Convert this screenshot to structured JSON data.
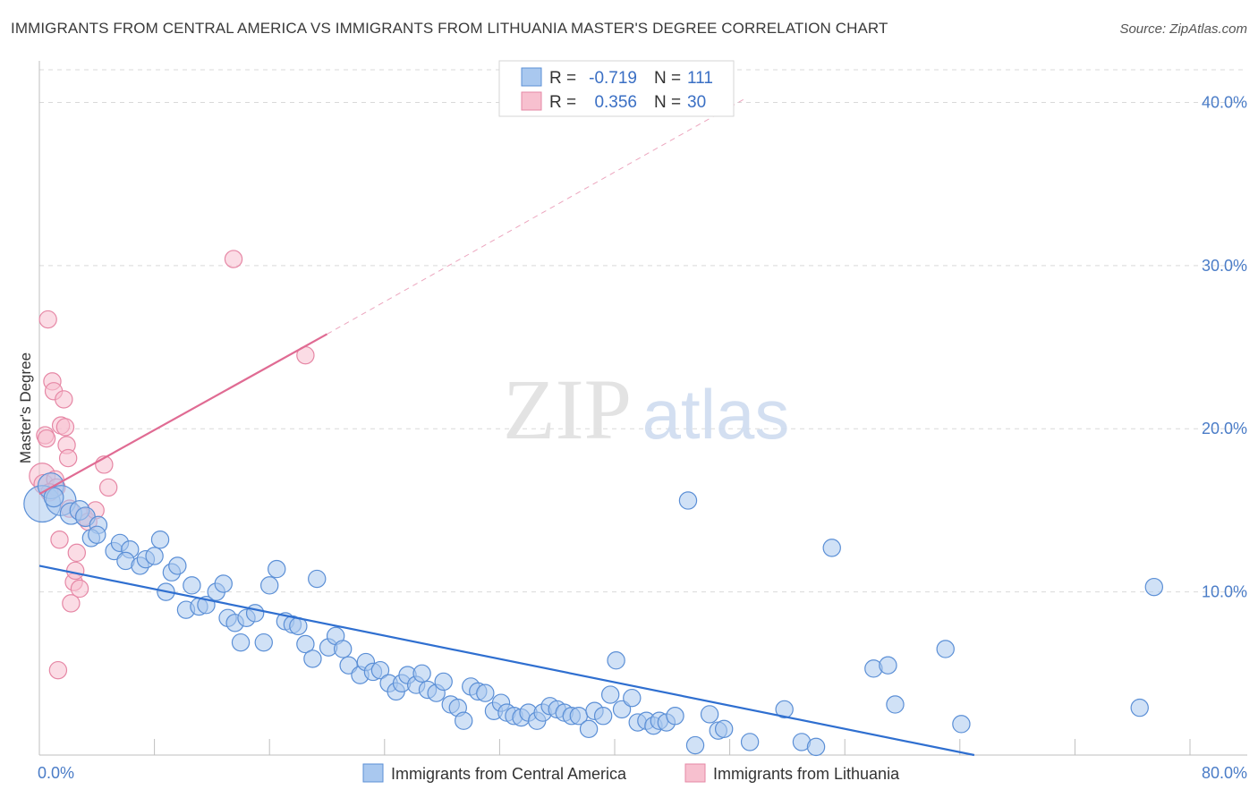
{
  "title": "IMMIGRANTS FROM CENTRAL AMERICA VS IMMIGRANTS FROM LITHUANIA MASTER'S DEGREE CORRELATION CHART",
  "source": "Source: ZipAtlas.com",
  "watermark": {
    "zip": "ZIP",
    "atlas": "atlas"
  },
  "colors": {
    "blue_fill": "#a9c8ef",
    "blue_stroke": "#5b8fd6",
    "blue_line": "#2f6fd0",
    "pink_fill": "#f7c0cf",
    "pink_stroke": "#e687a5",
    "pink_line": "#e06b93",
    "tick_text": "#4a7cc7",
    "grid": "#d9d9d9"
  },
  "legend": {
    "rows": [
      {
        "r_label": "R =",
        "r_value": "-0.719",
        "n_label": "N =",
        "n_value": "111"
      },
      {
        "r_label": "R =",
        "r_value": "0.356",
        "n_label": "N =",
        "n_value": "30"
      }
    ]
  },
  "chart_data": {
    "type": "scatter",
    "title": "IMMIGRANTS FROM CENTRAL AMERICA VS IMMIGRANTS FROM LITHUANIA MASTER'S DEGREE CORRELATION CHART",
    "xlabel": "",
    "ylabel": "Master's Degree",
    "xlim": [
      0,
      80
    ],
    "ylim": [
      0,
      42
    ],
    "x_tick_labels": [
      "0.0%",
      "80.0%"
    ],
    "y_ticks": [
      10,
      20,
      30,
      40
    ],
    "y_tick_labels": [
      "10.0%",
      "20.0%",
      "30.0%",
      "40.0%"
    ],
    "grid": true,
    "legend_position": "top-center",
    "series": [
      {
        "name": "Immigrants from Central America",
        "color": "#a9c8ef",
        "points": [
          [
            0.2,
            15.4,
            1.7
          ],
          [
            0.8,
            16.5,
            1.2
          ],
          [
            1.5,
            15.6,
            1.4
          ],
          [
            2.2,
            14.8,
            1.0
          ],
          [
            2.8,
            15.0,
            0.9
          ],
          [
            3.2,
            14.6,
            0.9
          ],
          [
            4.1,
            14.1,
            0.8
          ],
          [
            3.6,
            13.3,
            0.8
          ],
          [
            4.0,
            13.5,
            0.8
          ],
          [
            5.2,
            12.5,
            0.8
          ],
          [
            5.6,
            13.0,
            0.8
          ],
          [
            6.3,
            12.6,
            0.8
          ],
          [
            6.0,
            11.9,
            0.8
          ],
          [
            7.0,
            11.6,
            0.8
          ],
          [
            7.4,
            12.0,
            0.8
          ],
          [
            8.0,
            12.2,
            0.8
          ],
          [
            8.4,
            13.2,
            0.8
          ],
          [
            9.2,
            11.2,
            0.8
          ],
          [
            9.6,
            11.6,
            0.8
          ],
          [
            8.8,
            10.0,
            0.8
          ],
          [
            10.6,
            10.4,
            0.8
          ],
          [
            10.2,
            8.9,
            0.8
          ],
          [
            11.1,
            9.1,
            0.8
          ],
          [
            11.6,
            9.2,
            0.8
          ],
          [
            12.3,
            10.0,
            0.8
          ],
          [
            12.8,
            10.5,
            0.8
          ],
          [
            13.1,
            8.4,
            0.8
          ],
          [
            13.6,
            8.1,
            0.8
          ],
          [
            14.4,
            8.4,
            0.8
          ],
          [
            15.0,
            8.7,
            0.8
          ],
          [
            14.0,
            6.9,
            0.8
          ],
          [
            15.6,
            6.9,
            0.8
          ],
          [
            16.0,
            10.4,
            0.8
          ],
          [
            16.5,
            11.4,
            0.8
          ],
          [
            17.1,
            8.2,
            0.8
          ],
          [
            17.6,
            8.0,
            0.8
          ],
          [
            18.0,
            7.9,
            0.8
          ],
          [
            18.5,
            6.8,
            0.8
          ],
          [
            19.0,
            5.9,
            0.8
          ],
          [
            19.3,
            10.8,
            0.8
          ],
          [
            20.1,
            6.6,
            0.8
          ],
          [
            20.6,
            7.3,
            0.8
          ],
          [
            21.1,
            6.5,
            0.8
          ],
          [
            21.5,
            5.5,
            0.8
          ],
          [
            22.3,
            4.9,
            0.8
          ],
          [
            22.7,
            5.7,
            0.8
          ],
          [
            23.2,
            5.1,
            0.8
          ],
          [
            23.7,
            5.2,
            0.8
          ],
          [
            24.3,
            4.4,
            0.8
          ],
          [
            24.8,
            3.9,
            0.8
          ],
          [
            25.2,
            4.4,
            0.8
          ],
          [
            25.6,
            4.9,
            0.8
          ],
          [
            26.2,
            4.3,
            0.8
          ],
          [
            26.6,
            5.0,
            0.8
          ],
          [
            27.0,
            4.0,
            0.8
          ],
          [
            27.6,
            3.8,
            0.8
          ],
          [
            28.1,
            4.5,
            0.8
          ],
          [
            28.6,
            3.1,
            0.8
          ],
          [
            29.1,
            2.9,
            0.8
          ],
          [
            29.5,
            2.1,
            0.8
          ],
          [
            30.0,
            4.2,
            0.8
          ],
          [
            30.5,
            3.9,
            0.8
          ],
          [
            31.0,
            3.8,
            0.8
          ],
          [
            31.6,
            2.7,
            0.8
          ],
          [
            32.1,
            3.2,
            0.8
          ],
          [
            32.5,
            2.6,
            0.8
          ],
          [
            33.0,
            2.4,
            0.8
          ],
          [
            33.5,
            2.3,
            0.8
          ],
          [
            34.0,
            2.6,
            0.8
          ],
          [
            34.6,
            2.1,
            0.8
          ],
          [
            35.0,
            2.6,
            0.8
          ],
          [
            35.5,
            3.0,
            0.8
          ],
          [
            36.0,
            2.8,
            0.8
          ],
          [
            36.5,
            2.6,
            0.8
          ],
          [
            37.0,
            2.4,
            0.8
          ],
          [
            37.5,
            2.4,
            0.8
          ],
          [
            38.2,
            1.6,
            0.8
          ],
          [
            38.6,
            2.7,
            0.8
          ],
          [
            39.2,
            2.4,
            0.8
          ],
          [
            39.7,
            3.7,
            0.8
          ],
          [
            40.1,
            5.8,
            0.8
          ],
          [
            40.5,
            2.8,
            0.8
          ],
          [
            41.2,
            3.5,
            0.8
          ],
          [
            41.6,
            2.0,
            0.8
          ],
          [
            42.2,
            2.1,
            0.8
          ],
          [
            42.7,
            1.8,
            0.8
          ],
          [
            43.1,
            2.1,
            0.8
          ],
          [
            43.6,
            2.0,
            0.8
          ],
          [
            44.2,
            2.4,
            0.8
          ],
          [
            45.1,
            15.6,
            0.8
          ],
          [
            45.6,
            0.6,
            0.8
          ],
          [
            46.6,
            2.5,
            0.8
          ],
          [
            47.2,
            1.5,
            0.8
          ],
          [
            47.6,
            1.6,
            0.8
          ],
          [
            49.4,
            0.8,
            0.8
          ],
          [
            51.8,
            2.8,
            0.8
          ],
          [
            53.0,
            0.8,
            0.8
          ],
          [
            54.0,
            0.5,
            0.8
          ],
          [
            55.1,
            12.7,
            0.8
          ],
          [
            58.0,
            5.3,
            0.8
          ],
          [
            59.0,
            5.5,
            0.8
          ],
          [
            59.5,
            3.1,
            0.8
          ],
          [
            63.0,
            6.5,
            0.8
          ],
          [
            64.1,
            1.9,
            0.8
          ],
          [
            76.5,
            2.9,
            0.8
          ],
          [
            77.5,
            10.3,
            0.8
          ],
          [
            1.0,
            15.8,
            0.9
          ]
        ],
        "trendline": {
          "x": [
            0,
            65
          ],
          "y": [
            11.6,
            0
          ]
        }
      },
      {
        "name": "Immigrants from Lithuania",
        "color": "#f7c0cf",
        "points": [
          [
            0.2,
            17.1,
            1.2
          ],
          [
            0.3,
            16.6,
            0.9
          ],
          [
            0.4,
            19.6,
            0.8
          ],
          [
            0.5,
            19.4,
            0.8
          ],
          [
            0.6,
            26.7,
            0.8
          ],
          [
            0.9,
            22.9,
            0.8
          ],
          [
            1.0,
            22.3,
            0.8
          ],
          [
            1.1,
            16.9,
            0.8
          ],
          [
            1.2,
            16.4,
            0.8
          ],
          [
            1.4,
            13.2,
            0.8
          ],
          [
            1.5,
            20.2,
            0.8
          ],
          [
            1.7,
            21.8,
            0.8
          ],
          [
            1.8,
            20.1,
            0.8
          ],
          [
            1.9,
            19.0,
            0.8
          ],
          [
            2.0,
            18.2,
            0.8
          ],
          [
            2.1,
            15.1,
            0.8
          ],
          [
            2.2,
            9.3,
            0.8
          ],
          [
            2.4,
            10.6,
            0.8
          ],
          [
            2.5,
            11.3,
            0.8
          ],
          [
            2.6,
            12.4,
            0.8
          ],
          [
            2.8,
            10.2,
            0.8
          ],
          [
            3.1,
            14.6,
            0.8
          ],
          [
            3.4,
            14.3,
            0.8
          ],
          [
            3.9,
            15.0,
            0.8
          ],
          [
            4.5,
            17.8,
            0.8
          ],
          [
            4.8,
            16.4,
            0.8
          ],
          [
            13.5,
            30.4,
            0.8
          ],
          [
            18.5,
            24.5,
            0.8
          ],
          [
            1.3,
            5.2,
            0.8
          ],
          [
            0.7,
            16.1,
            0.8
          ]
        ],
        "trendline": {
          "x": [
            0,
            20
          ],
          "y": [
            16.0,
            25.8
          ]
        },
        "trendline_extension": {
          "x": [
            20,
            49
          ],
          "y": [
            25.8,
            40.2
          ]
        }
      }
    ]
  },
  "bottom_legend": {
    "items": [
      "Immigrants from Central America",
      "Immigrants from Lithuania"
    ]
  }
}
